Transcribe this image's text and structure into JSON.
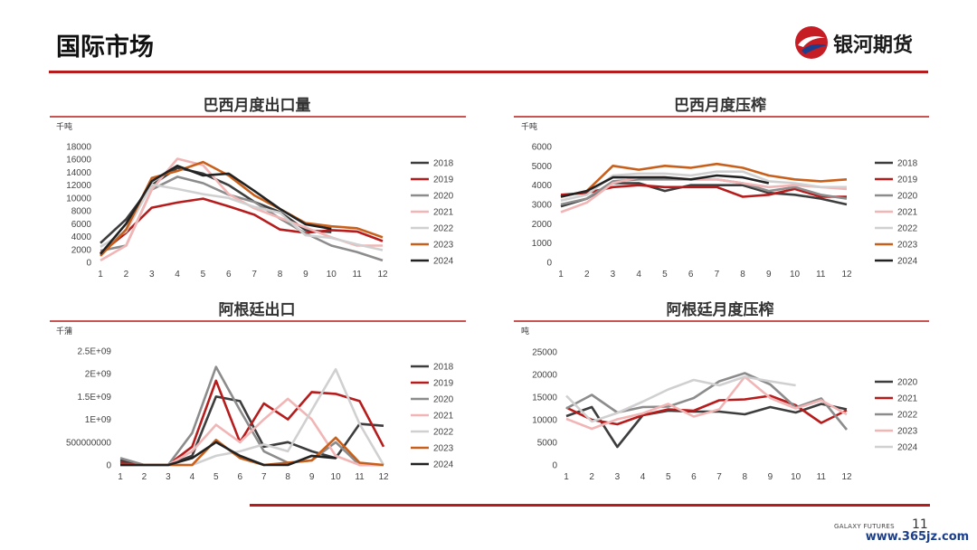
{
  "page": {
    "title": "国际市场",
    "brand": "银河期货",
    "footer_brand": "GALAXY FUTURES",
    "page_number": "11",
    "watermark": "www.365jz.com"
  },
  "colors": {
    "accent": "#b71c1c",
    "series_2018": "#3d3d3d",
    "series_2019": "#b71c1c",
    "series_2020": "#8c8c8c",
    "series_2021": "#f2b5b5",
    "series_2022": "#d0d0d0",
    "series_2023": "#c8601c",
    "series_2024": "#222222"
  },
  "chart_data": [
    {
      "type": "line",
      "title": "巴西月度出口量",
      "unit": "千吨",
      "xlabel": "",
      "ylabel": "",
      "x": [
        1,
        2,
        3,
        4,
        5,
        6,
        7,
        8,
        9,
        10,
        11,
        12
      ],
      "ylim": [
        0,
        18000
      ],
      "yticks": [
        0,
        2000,
        4000,
        6000,
        8000,
        10000,
        12000,
        14000,
        16000,
        18000
      ],
      "ytick_labels": [
        "0",
        "2000",
        "4000",
        "6000",
        "8000",
        "10000",
        "12000",
        "14000",
        "16000",
        "18000"
      ],
      "legend_position": "right",
      "series": [
        {
          "name": "2018",
          "color": "#3d3d3d",
          "values": [
            3000,
            6700,
            12000,
            14700,
            13800,
            12000,
            9400,
            7800,
            5000,
            4700,
            null,
            null
          ]
        },
        {
          "name": "2019",
          "color": "#b71c1c",
          "values": [
            1400,
            4600,
            8500,
            9300,
            9900,
            8700,
            7400,
            5100,
            4600,
            5000,
            4800,
            3300
          ]
        },
        {
          "name": "2020",
          "color": "#8c8c8c",
          "values": [
            1800,
            2600,
            11300,
            13300,
            12300,
            10500,
            9400,
            6800,
            4500,
            2600,
            1600,
            300
          ]
        },
        {
          "name": "2021",
          "color": "#f2b5b5",
          "values": [
            300,
            2600,
            11300,
            16100,
            15100,
            10600,
            8400,
            6900,
            5400,
            3900,
            2600,
            2600
          ]
        },
        {
          "name": "2022",
          "color": "#d0d0d0",
          "values": [
            2400,
            4800,
            12100,
            11400,
            10600,
            10000,
            8600,
            7700,
            4200,
            3800,
            2800,
            1900
          ]
        },
        {
          "name": "2023",
          "color": "#c8601c",
          "values": [
            1000,
            5100,
            13100,
            14200,
            15600,
            13500,
            10400,
            8300,
            6100,
            5600,
            5300,
            3900
          ]
        },
        {
          "name": "2024",
          "color": "#222222",
          "values": [
            1300,
            6000,
            12600,
            15000,
            13500,
            13800,
            11100,
            8300,
            5900,
            5200,
            null,
            null
          ]
        }
      ]
    },
    {
      "type": "line",
      "title": "巴西月度压榨",
      "unit": "千吨",
      "xlabel": "",
      "ylabel": "",
      "x": [
        1,
        2,
        3,
        4,
        5,
        6,
        7,
        8,
        9,
        10,
        11,
        12
      ],
      "ylim": [
        0,
        6000
      ],
      "yticks": [
        0,
        1000,
        2000,
        3000,
        4000,
        5000,
        6000
      ],
      "ytick_labels": [
        "0",
        "1000",
        "2000",
        "3000",
        "4000",
        "5000",
        "6000"
      ],
      "legend_position": "right",
      "series": [
        {
          "name": "2018",
          "color": "#3d3d3d",
          "values": [
            2900,
            3300,
            4100,
            4100,
            3700,
            4000,
            4000,
            4000,
            3600,
            3500,
            3300,
            3000
          ]
        },
        {
          "name": "2019",
          "color": "#b71c1c",
          "values": [
            3500,
            3600,
            3900,
            4000,
            3900,
            3900,
            3900,
            3400,
            3500,
            3800,
            3400,
            3400
          ]
        },
        {
          "name": "2020",
          "color": "#8c8c8c",
          "values": [
            3000,
            3300,
            4200,
            4300,
            4300,
            4300,
            4300,
            4100,
            3700,
            3900,
            3500,
            3300
          ]
        },
        {
          "name": "2021",
          "color": "#f2b5b5",
          "values": [
            2600,
            3100,
            4100,
            4400,
            4400,
            4300,
            4300,
            4100,
            3900,
            4000,
            3900,
            3800
          ]
        },
        {
          "name": "2022",
          "color": "#d0d0d0",
          "values": [
            3200,
            3500,
            4500,
            4600,
            4600,
            4500,
            4700,
            4700,
            4200,
            4100,
            3900,
            3900
          ]
        },
        {
          "name": "2023",
          "color": "#c8601c",
          "values": [
            3400,
            3700,
            5000,
            4800,
            5000,
            4900,
            5100,
            4900,
            4500,
            4300,
            4200,
            4300
          ]
        },
        {
          "name": "2024",
          "color": "#222222",
          "values": [
            3400,
            3700,
            4400,
            4400,
            4400,
            4300,
            4500,
            4400,
            4100,
            null,
            null,
            null
          ]
        }
      ]
    },
    {
      "type": "line",
      "title": "阿根廷出口",
      "unit": "千蒲",
      "xlabel": "",
      "ylabel": "",
      "x": [
        1,
        2,
        3,
        4,
        5,
        6,
        7,
        8,
        9,
        10,
        11,
        12
      ],
      "ylim": [
        0,
        2500000000
      ],
      "yticks": [
        0,
        500000000,
        1000000000,
        1500000000,
        2000000000,
        2500000000
      ],
      "ytick_labels": [
        "0",
        "500000000",
        "1E+09",
        "1.5E+09",
        "2E+09",
        "2.5E+09"
      ],
      "legend_position": "right",
      "series": [
        {
          "name": "2018",
          "color": "#3d3d3d",
          "values": [
            100000000,
            0,
            0,
            200000000,
            1500000000,
            1400000000,
            400000000,
            500000000,
            300000000,
            150000000,
            900000000,
            860000000
          ]
        },
        {
          "name": "2019",
          "color": "#b71c1c",
          "values": [
            50000000,
            0,
            0,
            400000000,
            1850000000,
            500000000,
            1350000000,
            1000000000,
            1600000000,
            1560000000,
            1400000000,
            400000000
          ]
        },
        {
          "name": "2020",
          "color": "#8c8c8c",
          "values": [
            150000000,
            0,
            0,
            700000000,
            2150000000,
            1200000000,
            300000000,
            50000000,
            100000000,
            500000000,
            0,
            0
          ]
        },
        {
          "name": "2021",
          "color": "#f2b5b5",
          "values": [
            0,
            0,
            0,
            300000000,
            880000000,
            500000000,
            1000000000,
            1450000000,
            1000000000,
            200000000,
            0,
            0
          ]
        },
        {
          "name": "2022",
          "color": "#d0d0d0",
          "values": [
            0,
            0,
            0,
            0,
            200000000,
            300000000,
            450000000,
            300000000,
            1200000000,
            2100000000,
            900000000,
            0
          ]
        },
        {
          "name": "2023",
          "color": "#c8601c",
          "values": [
            0,
            0,
            0,
            0,
            550000000,
            150000000,
            0,
            50000000,
            100000000,
            600000000,
            50000000,
            0
          ]
        },
        {
          "name": "2024",
          "color": "#222222",
          "values": [
            0,
            0,
            0,
            150000000,
            500000000,
            200000000,
            0,
            0,
            200000000,
            150000000,
            null,
            null
          ]
        }
      ]
    },
    {
      "type": "line",
      "title": "阿根廷月度压榨",
      "unit": "吨",
      "xlabel": "",
      "ylabel": "",
      "x": [
        1,
        2,
        3,
        4,
        5,
        6,
        7,
        8,
        9,
        10,
        11,
        12
      ],
      "ylim": [
        0,
        25000
      ],
      "yticks": [
        0,
        5000,
        10000,
        15000,
        20000,
        25000
      ],
      "ytick_labels": [
        "0",
        "5000",
        "10000",
        "15000",
        "20000",
        "25000"
      ],
      "legend_position": "right",
      "series": [
        {
          "name": "2020",
          "color": "#3d3d3d",
          "values": [
            10800,
            12800,
            4000,
            11000,
            12000,
            11800,
            11800,
            11200,
            12800,
            11600,
            13500,
            12300
          ]
        },
        {
          "name": "2021",
          "color": "#b71c1c",
          "values": [
            12700,
            10000,
            9000,
            11000,
            12300,
            12000,
            14300,
            14500,
            15300,
            13200,
            9300,
            12100
          ]
        },
        {
          "name": "2022",
          "color": "#8c8c8c",
          "values": [
            12500,
            15500,
            11600,
            12800,
            12900,
            14800,
            18500,
            20300,
            17800,
            12700,
            14700,
            7800
          ]
        },
        {
          "name": "2023",
          "color": "#f2b5b5",
          "values": [
            10200,
            8000,
            10100,
            11400,
            13500,
            10700,
            12300,
            19500,
            14800,
            12500,
            14300,
            11200
          ]
        },
        {
          "name": "2024",
          "color": "#d0d0d0",
          "values": [
            15300,
            9600,
            11500,
            14000,
            16700,
            18800,
            17600,
            19500,
            18500,
            17600,
            null,
            null
          ]
        }
      ]
    }
  ]
}
